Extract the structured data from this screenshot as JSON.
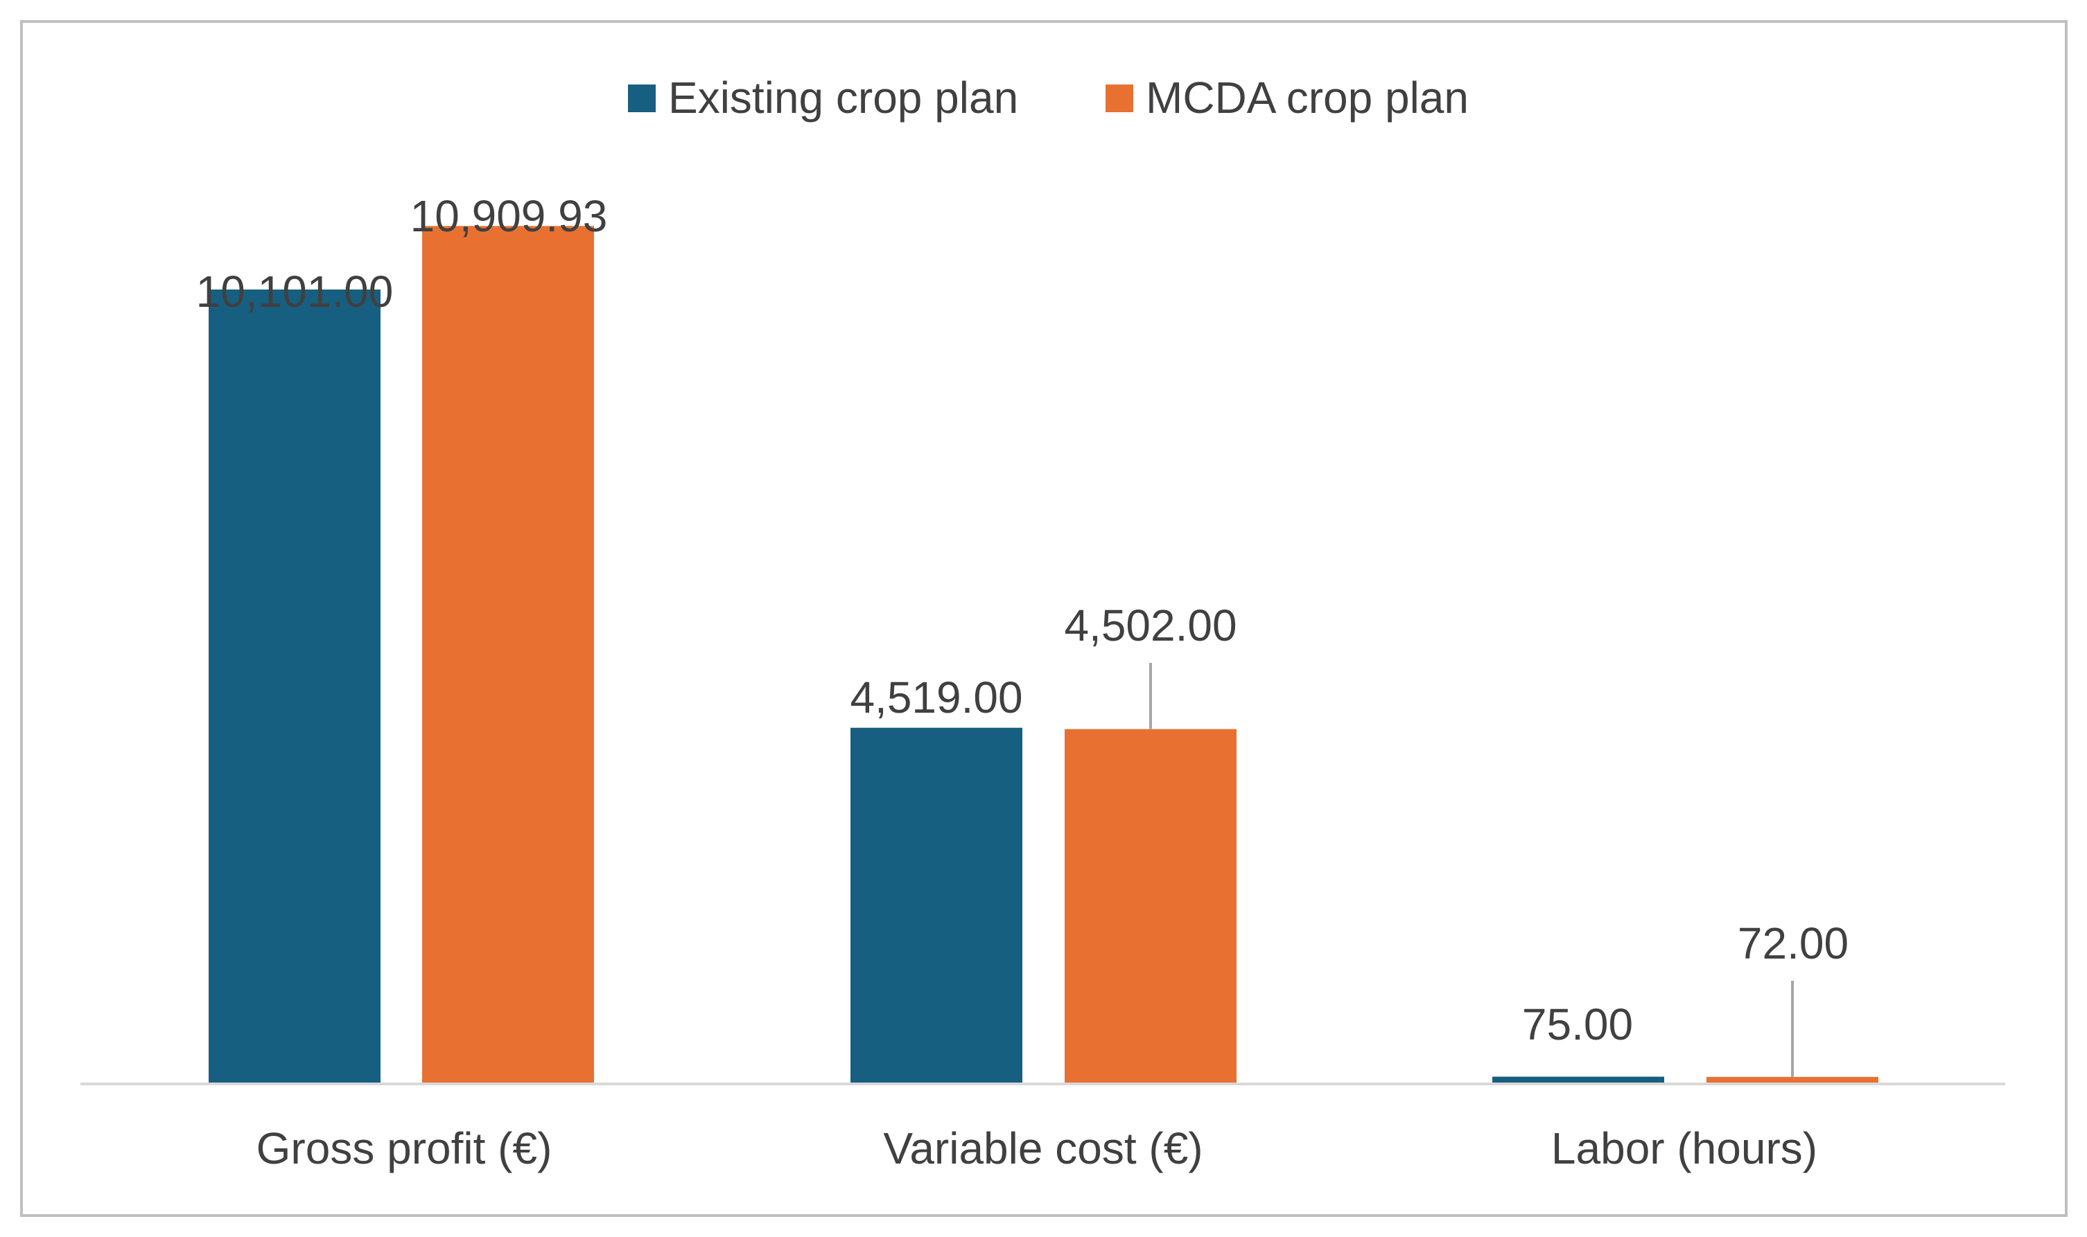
{
  "chart_data": {
    "type": "bar",
    "title": "",
    "xlabel": "",
    "ylabel": "",
    "categories": [
      "Gross profit (€)",
      "Variable cost (€)",
      "Labor (hours)"
    ],
    "series": [
      {
        "name": "Existing crop plan",
        "color": "#175F80",
        "values": [
          10101.0,
          4519.0,
          75.0
        ],
        "labels": [
          "10,101.00",
          "4,519.00",
          "75.00"
        ]
      },
      {
        "name": "MCDA crop plan",
        "color": "#E87132",
        "values": [
          10909.93,
          4502.0,
          72.0
        ],
        "labels": [
          "10,909.93",
          "4,502.00",
          "72.00"
        ]
      }
    ],
    "ylim": [
      0,
      11000
    ],
    "grid": false,
    "legend": "top-center",
    "axis_color": "#D9D9D9",
    "leader_color": "#A6A6A6",
    "border_color": "#BFBFBF"
  }
}
